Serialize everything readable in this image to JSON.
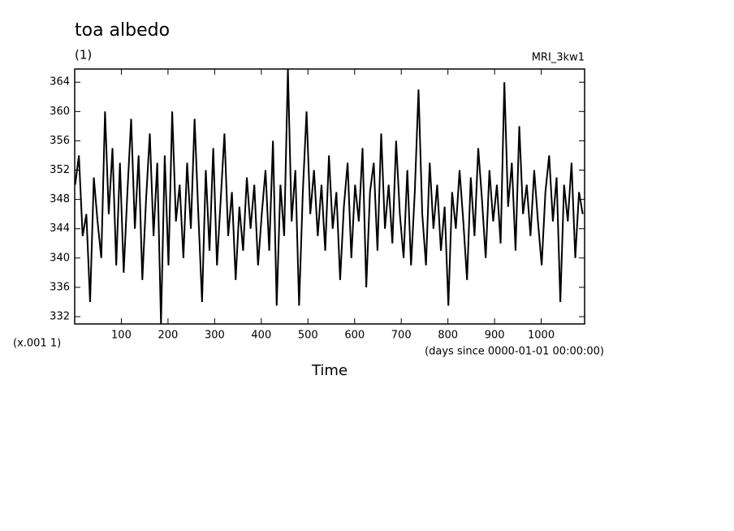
{
  "chart_data": {
    "type": "line",
    "title": "toa albedo",
    "subtitle": "(1)",
    "model_label": "MRI_3kw1",
    "y_scale_label": "(x.001 1)",
    "x_units_label": "(days since 0000-01-01 00:00:00)",
    "x_label": "Time",
    "color": "#000000",
    "xlim": [
      0,
      1093
    ],
    "ylim": [
      331,
      365.8
    ],
    "xticks": [
      100,
      200,
      300,
      400,
      500,
      600,
      700,
      800,
      900,
      1000
    ],
    "yticks": [
      332,
      336,
      340,
      344,
      348,
      352,
      356,
      360,
      364
    ],
    "x": [
      1,
      9,
      17,
      25,
      33,
      41,
      49,
      57,
      65,
      73,
      81,
      89,
      97,
      105,
      113,
      121,
      129,
      137,
      145,
      153,
      161,
      169,
      177,
      185,
      193,
      201,
      209,
      217,
      225,
      233,
      241,
      249,
      257,
      265,
      273,
      281,
      289,
      297,
      305,
      313,
      321,
      329,
      337,
      345,
      353,
      361,
      369,
      377,
      385,
      393,
      401,
      409,
      417,
      425,
      433,
      441,
      449,
      457,
      465,
      473,
      481,
      489,
      497,
      505,
      513,
      521,
      529,
      537,
      545,
      553,
      561,
      569,
      577,
      585,
      593,
      601,
      609,
      617,
      625,
      633,
      641,
      649,
      657,
      665,
      673,
      681,
      689,
      697,
      705,
      713,
      721,
      729,
      737,
      745,
      753,
      761,
      769,
      777,
      785,
      793,
      801,
      809,
      817,
      825,
      833,
      841,
      849,
      857,
      865,
      873,
      881,
      889,
      897,
      905,
      913,
      921,
      929,
      937,
      945,
      953,
      961,
      969,
      977,
      985,
      993,
      1001,
      1009,
      1017,
      1025,
      1033,
      1041,
      1049,
      1057,
      1065,
      1073,
      1081,
      1089
    ],
    "values": [
      350,
      354,
      343,
      346,
      334,
      351,
      345,
      340,
      360,
      346,
      355,
      339,
      353,
      338,
      349,
      359,
      344,
      354,
      337,
      348,
      357,
      343,
      353,
      331,
      354,
      339,
      360,
      345,
      350,
      340,
      353,
      344,
      359,
      346,
      334,
      352,
      341,
      355,
      339,
      348,
      357,
      343,
      349,
      337,
      347,
      341,
      351,
      344,
      350,
      339,
      346,
      352,
      341,
      356,
      333.5,
      350,
      343,
      365.8,
      345,
      352,
      333.5,
      349,
      360,
      346,
      352,
      343,
      350,
      341,
      354,
      344,
      349,
      337,
      347,
      353,
      340,
      350,
      345,
      355,
      336,
      349,
      353,
      341,
      357,
      344,
      350,
      342,
      356,
      346,
      340,
      352,
      339,
      349,
      363,
      346,
      339,
      353,
      344,
      350,
      341,
      347,
      333.5,
      349,
      344,
      352,
      345,
      337,
      351,
      343,
      355,
      348,
      340,
      352,
      345,
      350,
      342,
      364,
      347,
      353,
      341,
      358,
      346,
      350,
      343,
      352,
      345,
      339,
      349,
      354,
      345,
      351,
      334,
      350,
      345,
      353,
      340,
      349,
      346
    ]
  }
}
